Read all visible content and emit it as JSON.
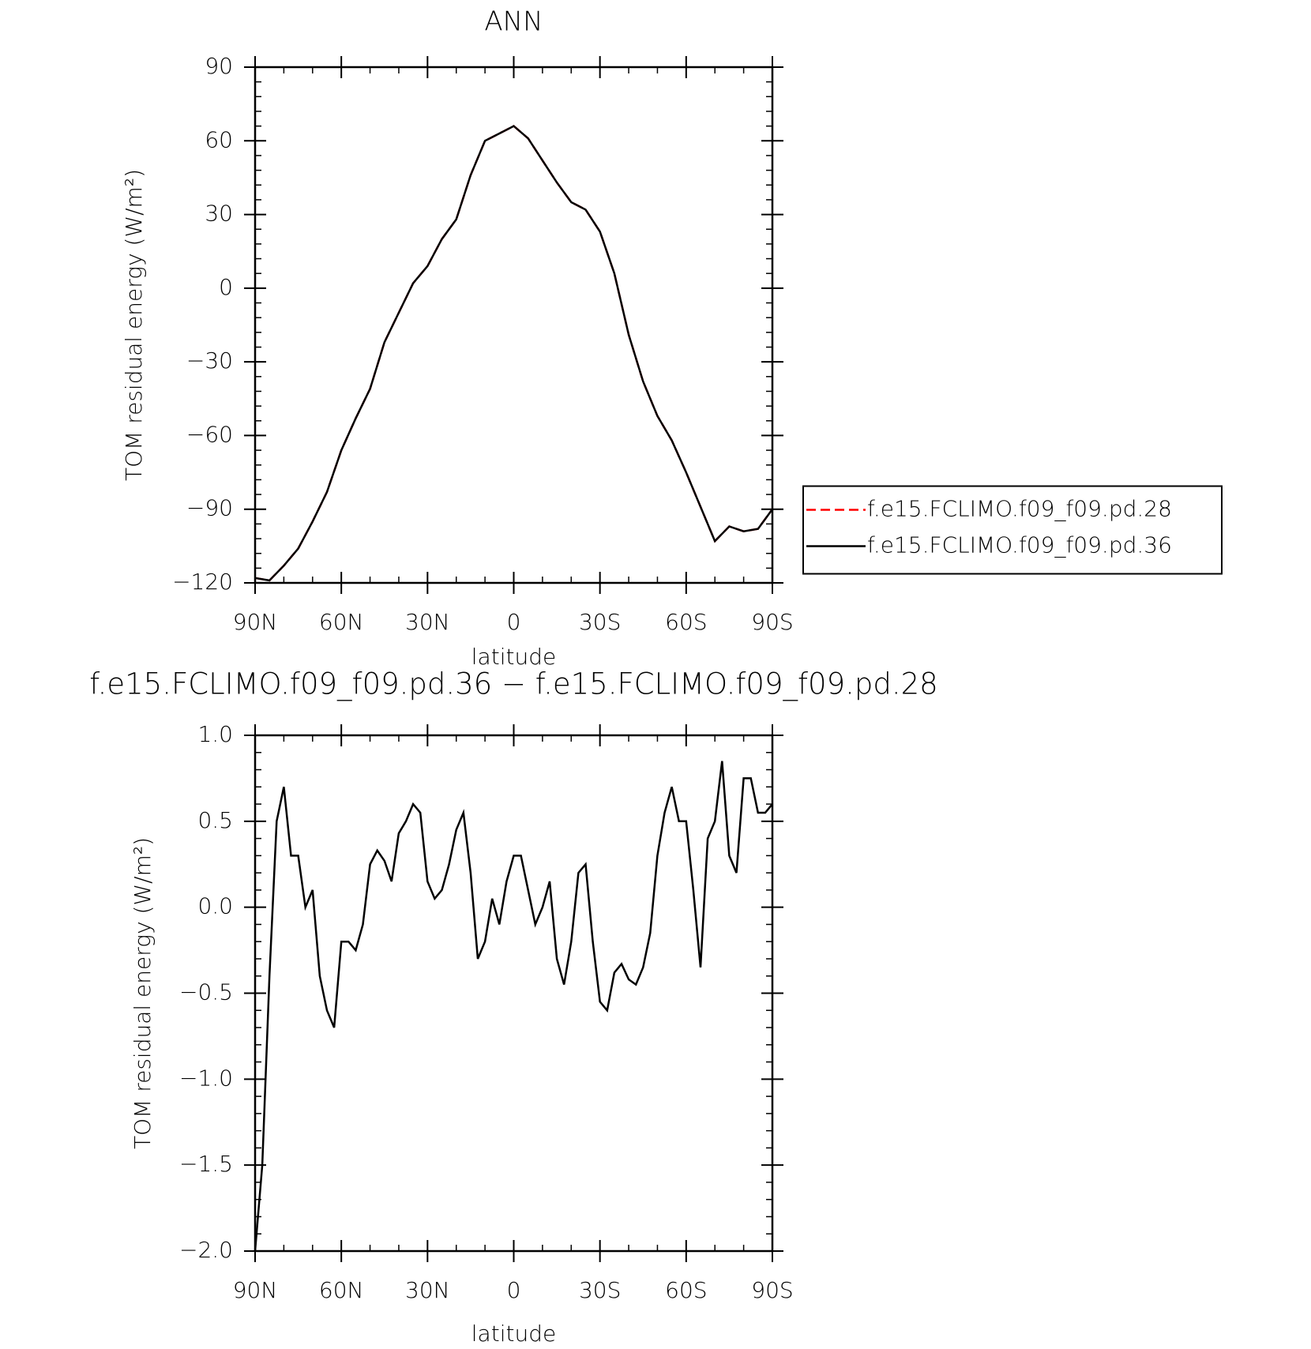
{
  "chart_data": [
    {
      "type": "line",
      "title": "ANN",
      "xlabel": "latitude",
      "ylabel": "TOM residual energy (W/m²)",
      "x": [
        90,
        85,
        80,
        75,
        70,
        65,
        60,
        55,
        50,
        45,
        40,
        35,
        30,
        25,
        20,
        15,
        10,
        5,
        0,
        -5,
        -10,
        -15,
        -20,
        -25,
        -30,
        -35,
        -40,
        -45,
        -50,
        -55,
        -60,
        -65,
        -70,
        -75,
        -80,
        -85,
        -90
      ],
      "series": [
        {
          "name": "f.e15.FCLIMO.f09_f09.pd.28",
          "color": "#ff0000",
          "linestyle": "dashed",
          "values": [
            -118,
            -119,
            -113,
            -106,
            -95,
            -83,
            -66,
            -53,
            -41,
            -22,
            -10,
            2,
            9,
            20,
            28,
            46,
            60,
            63,
            66,
            61,
            52,
            43,
            35,
            32,
            23,
            6,
            -19,
            -38,
            -52,
            -62,
            -75,
            -89,
            -103,
            -97,
            -99,
            -98,
            -90
          ]
        },
        {
          "name": "f.e15.FCLIMO.f09_f09.pd.36",
          "color": "#000000",
          "linestyle": "solid",
          "values": [
            -118,
            -119,
            -113,
            -106,
            -95,
            -83,
            -66,
            -53,
            -41,
            -22,
            -10,
            2,
            9,
            20,
            28,
            46,
            60,
            63,
            66,
            61,
            52,
            43,
            35,
            32,
            23,
            6,
            -19,
            -38,
            -52,
            -62,
            -75,
            -89,
            -103,
            -97,
            -99,
            -98,
            -90
          ]
        }
      ],
      "xlim": [
        90,
        -90
      ],
      "xticks": [
        {
          "value": 90,
          "label": "90N"
        },
        {
          "value": 60,
          "label": "60N"
        },
        {
          "value": 30,
          "label": "30N"
        },
        0,
        {
          "value": -30,
          "label": "30S"
        },
        {
          "value": -60,
          "label": "60S"
        },
        {
          "value": -90,
          "label": "90S"
        }
      ],
      "ylim": [
        -120,
        90
      ],
      "yticks": [
        {
          "value": -120,
          "label": "−120"
        },
        {
          "value": -90,
          "label": "−90"
        },
        {
          "value": -60,
          "label": "−60"
        },
        {
          "value": -30,
          "label": "−30"
        },
        0,
        30,
        60,
        90
      ],
      "legend": "right"
    },
    {
      "type": "line",
      "title": "f.e15.FCLIMO.f09_f09.pd.36 − f.e15.FCLIMO.f09_f09.pd.28",
      "xlabel": "latitude",
      "ylabel": "TOM residual energy (W/m²)",
      "x": [
        90,
        87.5,
        85,
        82.5,
        80,
        77.5,
        75,
        72.5,
        70,
        67.5,
        65,
        62.5,
        60,
        57.5,
        55,
        52.5,
        50,
        47.5,
        45,
        42.5,
        40,
        37.5,
        35,
        32.5,
        30,
        27.5,
        25,
        22.5,
        20,
        17.5,
        15,
        12.5,
        10,
        7.5,
        5,
        2.5,
        0,
        -2.5,
        -5,
        -7.5,
        -10,
        -12.5,
        -15,
        -17.5,
        -20,
        -22.5,
        -25,
        -27.5,
        -30,
        -32.5,
        -35,
        -37.5,
        -40,
        -42.5,
        -45,
        -47.5,
        -50,
        -52.5,
        -55,
        -57.5,
        -60,
        -62.5,
        -65,
        -67.5,
        -70,
        -72.5,
        -75,
        -77.5,
        -80,
        -82.5,
        -85,
        -87.5,
        -90
      ],
      "series": [
        {
          "color": "#000000",
          "linestyle": "solid",
          "values": [
            -2.0,
            -1.5,
            -0.4,
            0.5,
            0.7,
            0.3,
            0.3,
            0.0,
            0.1,
            -0.4,
            -0.6,
            -0.7,
            -0.2,
            -0.2,
            -0.25,
            -0.1,
            0.25,
            0.33,
            0.27,
            0.15,
            0.43,
            0.5,
            0.6,
            0.55,
            0.15,
            0.05,
            0.1,
            0.25,
            0.45,
            0.55,
            0.2,
            -0.3,
            -0.2,
            0.05,
            -0.1,
            0.15,
            0.3,
            0.3,
            0.1,
            -0.1,
            0.0,
            0.15,
            -0.3,
            -0.45,
            -0.2,
            0.2,
            0.25,
            -0.2,
            -0.55,
            -0.6,
            -0.38,
            -0.33,
            -0.42,
            -0.45,
            -0.35,
            -0.15,
            0.3,
            0.55,
            0.7,
            0.5,
            0.5,
            0.1,
            -0.35,
            0.4,
            0.5,
            0.85,
            0.3,
            0.2,
            0.75,
            0.75,
            0.55,
            0.55,
            0.6
          ]
        }
      ],
      "xlim": [
        90,
        -90
      ],
      "xticks": [
        {
          "value": 90,
          "label": "90N"
        },
        {
          "value": 60,
          "label": "60N"
        },
        {
          "value": 30,
          "label": "30N"
        },
        0,
        {
          "value": -30,
          "label": "30S"
        },
        {
          "value": -60,
          "label": "60S"
        },
        {
          "value": -90,
          "label": "90S"
        }
      ],
      "ylim": [
        -2.0,
        1.0
      ],
      "yticks": [
        {
          "value": -2.0,
          "label": "−2.0"
        },
        {
          "value": -1.5,
          "label": "−1.5"
        },
        {
          "value": -1.0,
          "label": "−1.0"
        },
        {
          "value": -0.5,
          "label": "−0.5"
        },
        {
          "value": 0.0,
          "label": "0.0"
        },
        0.5,
        {
          "value": 1.0,
          "label": "1.0"
        }
      ]
    }
  ]
}
